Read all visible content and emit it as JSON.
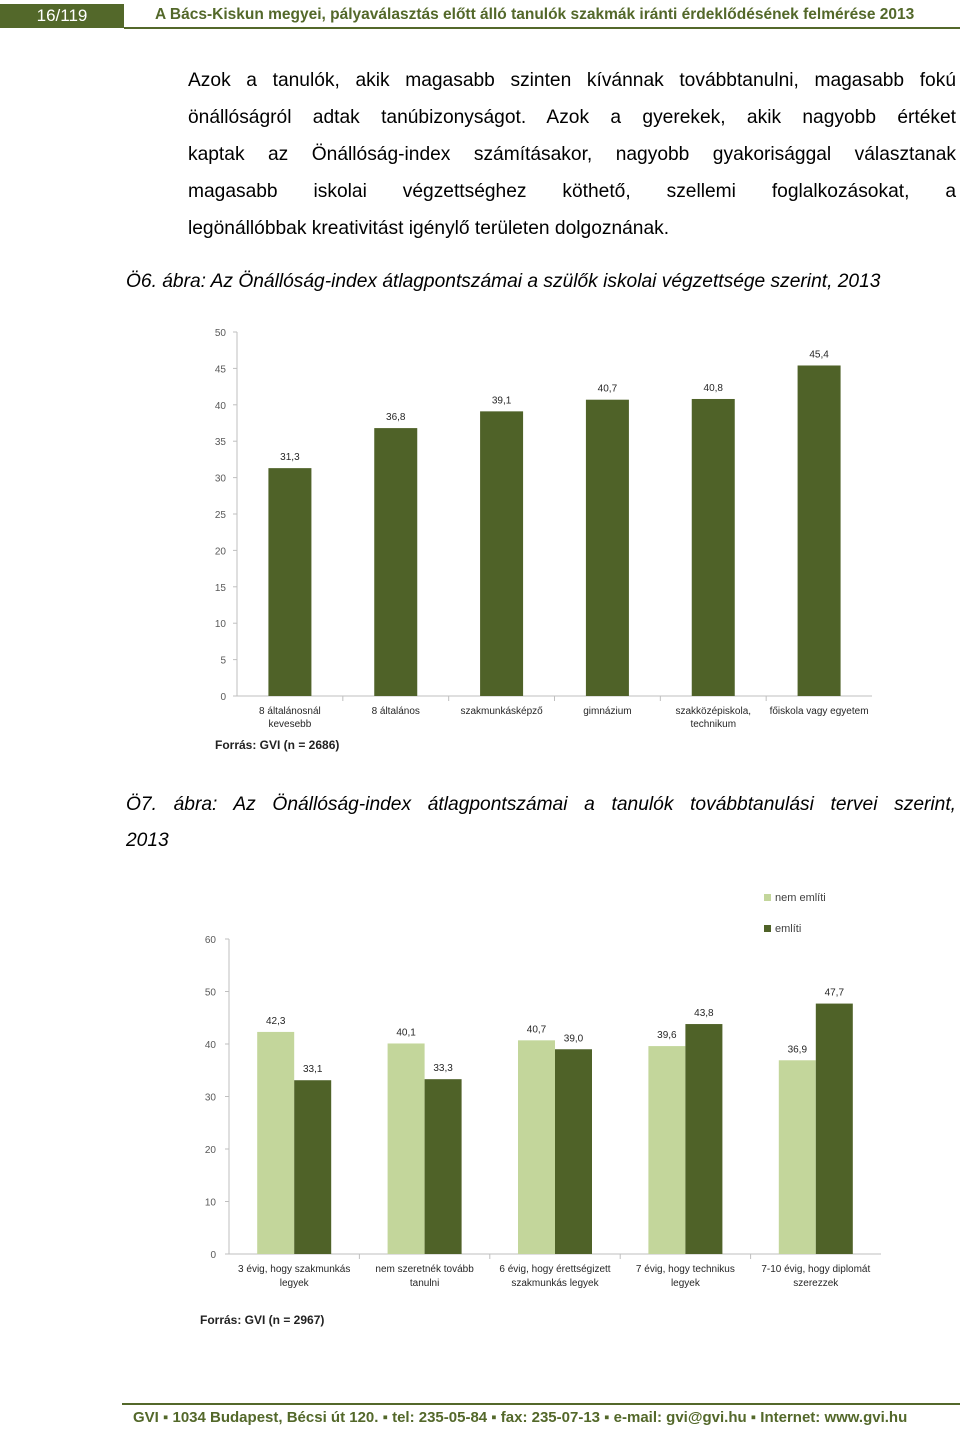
{
  "header": {
    "page_number": "16/119",
    "title": "A Bács-Kiskun megyei, pályaválasztás előtt álló tanulók szakmák iránti érdeklődésének felmérése 2013"
  },
  "paragraph": {
    "lines": [
      "Azok a tanulók, akik magasabb szinten kívánnak továbbtanulni, magasabb fokú",
      "önállóságról adtak tanúbizonyságot. Azok a gyerekek, akik nagyobb értéket",
      "kaptak az Önállóság-index számításakor, nagyobb gyakorisággal választanak",
      "magasabb iskolai végzettséghez köthető, szellemi foglalkozásokat, a",
      "legönállóbbak kreativitást igénylő területen dolgoznának."
    ]
  },
  "figure6": {
    "caption": "Ö6. ábra: Az Önállóság-index átlagpontszámai a szülők iskolai végzettsége szerint, 2013",
    "source": "Forrás: GVI (n = 2686)"
  },
  "figure7": {
    "caption_line1": "Ö7. ábra: Az Önállóság-index átlagpontszámai a tanulók továbbtanulási tervei szerint,",
    "caption_line2": "2013",
    "source": "Forrás: GVI (n = 2967)"
  },
  "chart_data": [
    {
      "type": "bar",
      "categories": [
        [
          "8 általánosnál",
          "kevesebb"
        ],
        [
          "8 általános"
        ],
        [
          "szakmunkásképző"
        ],
        [
          "gimnázium"
        ],
        [
          "szakközépiskola,",
          "technikum"
        ],
        [
          "főiskola vagy egyetem"
        ]
      ],
      "values": [
        31.3,
        36.8,
        39.1,
        40.7,
        40.8,
        45.4
      ],
      "value_labels": [
        "31,3",
        "36,8",
        "39,1",
        "40,7",
        "40,8",
        "45,4"
      ],
      "ylim": [
        0,
        50
      ],
      "yticks": [
        "0",
        "5",
        "10",
        "15",
        "20",
        "25",
        "30",
        "35",
        "40",
        "45",
        "50"
      ],
      "color": "#4f6228",
      "grid": false
    },
    {
      "type": "bar",
      "categories": [
        [
          "3 évig, hogy szakmunkás",
          "legyek"
        ],
        [
          "nem szeretnék tovább",
          "tanulni"
        ],
        [
          "6 évig, hogy érettségizett",
          "szakmunkás legyek"
        ],
        [
          "7 évig, hogy technikus",
          "legyek"
        ],
        [
          "7-10 évig, hogy diplomát",
          "szerezzek"
        ]
      ],
      "series": [
        {
          "name": "nem említi",
          "color": "#c3d69b",
          "values": [
            42.3,
            40.1,
            40.7,
            39.6,
            36.9
          ],
          "value_labels": [
            "42,3",
            "40,1",
            "40,7",
            "39,6",
            "36,9"
          ]
        },
        {
          "name": "említi",
          "color": "#4f6228",
          "values": [
            33.1,
            33.3,
            39.0,
            43.8,
            47.7
          ],
          "value_labels": [
            "33,1",
            "33,3",
            "39,0",
            "43,8",
            "47,7"
          ]
        }
      ],
      "ylim": [
        0,
        60
      ],
      "yticks": [
        "0",
        "10",
        "20",
        "30",
        "40",
        "50",
        "60"
      ],
      "legend": "top-right",
      "grid": false
    }
  ],
  "footer": {
    "text": "GVI ▪ 1034 Budapest, Bécsi út 120. ▪ tel: 235-05-84 ▪ fax: 235-07-13 ▪ e-mail: gvi@gvi.hu ▪ Internet: www.gvi.hu"
  }
}
